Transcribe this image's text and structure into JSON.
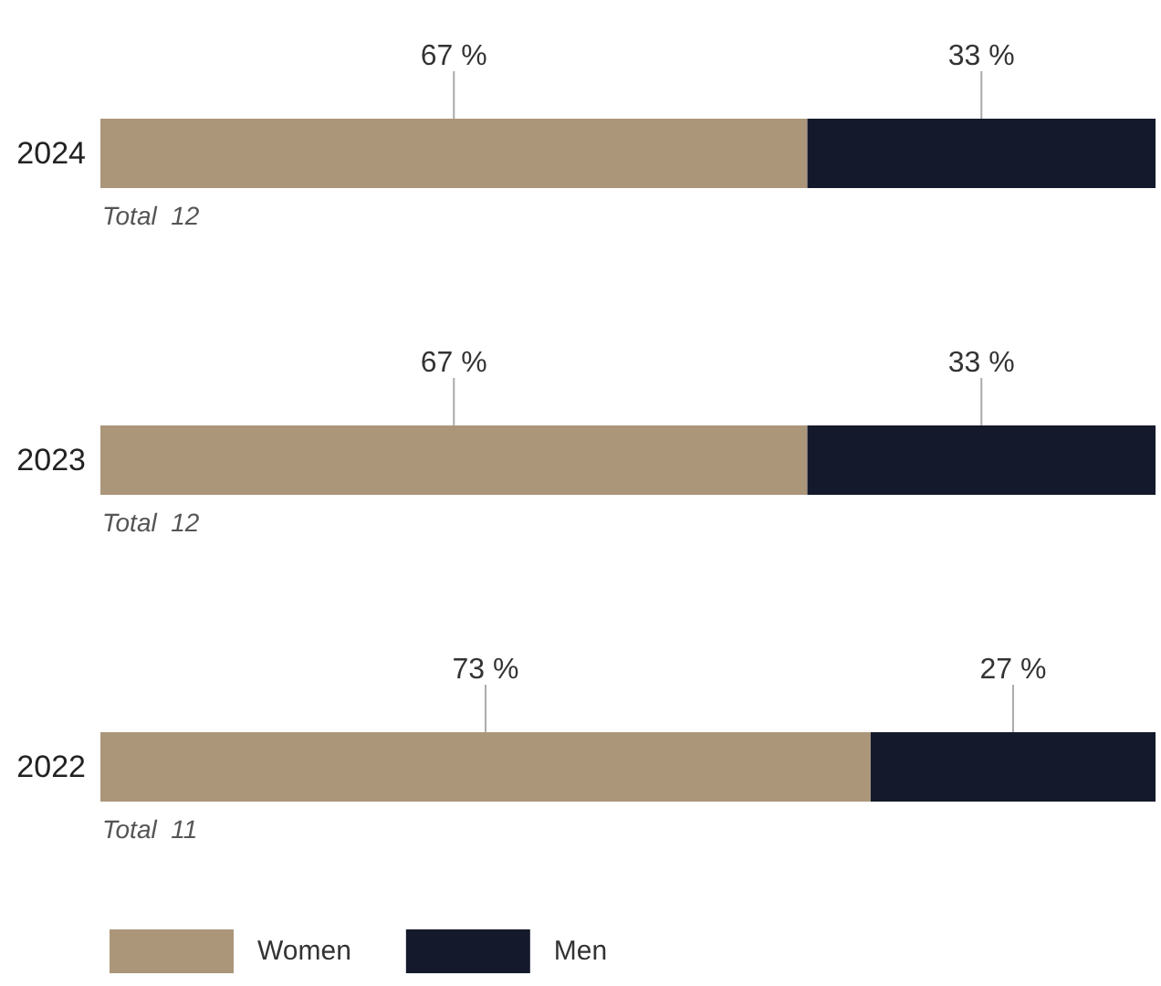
{
  "chart_data": {
    "type": "bar",
    "orientation": "horizontal",
    "stacked": true,
    "categories": [
      "2024",
      "2023",
      "2022"
    ],
    "series": [
      {
        "name": "Women",
        "color": "#ab967a",
        "values": [
          67,
          67,
          73
        ],
        "value_labels": [
          "67 %",
          "67 %",
          "73 %"
        ]
      },
      {
        "name": "Men",
        "color": "#141a2b",
        "values": [
          33,
          33,
          27
        ],
        "value_labels": [
          "33 %",
          "33 %",
          "27 %"
        ]
      }
    ],
    "totals": [
      "Total  12",
      "Total  12",
      "Total  11"
    ],
    "tick_labels": "y",
    "legend": "bottom left"
  }
}
